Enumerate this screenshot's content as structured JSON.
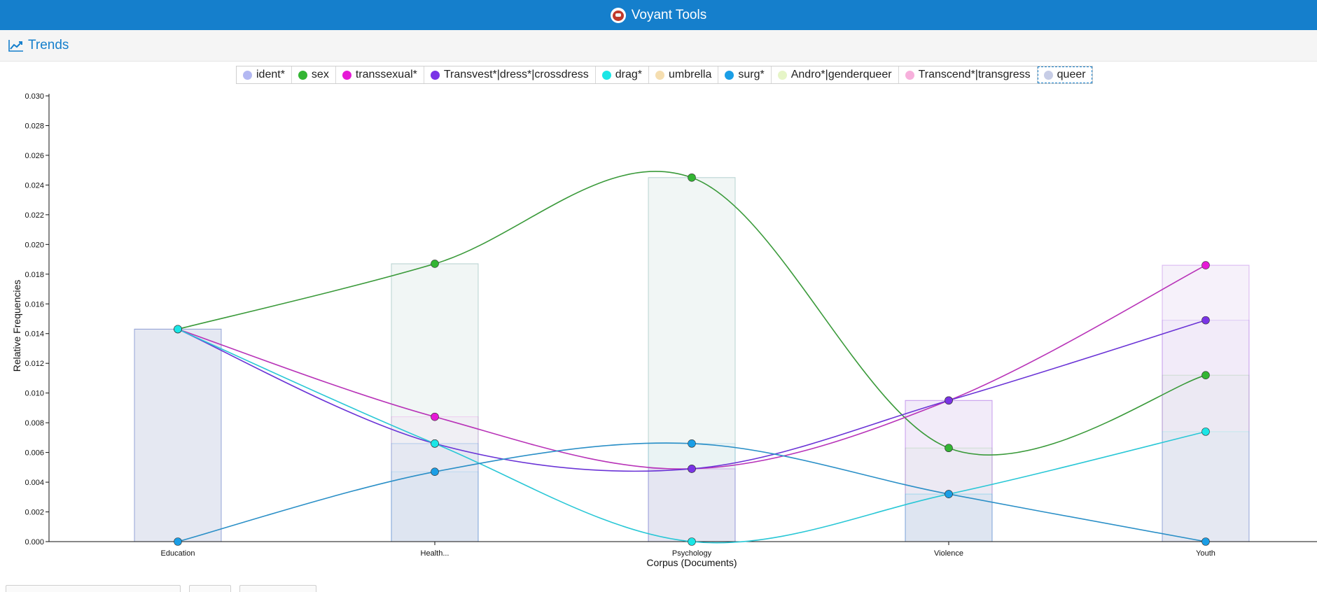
{
  "app": {
    "title": "Voyant Tools"
  },
  "panel": {
    "title": "Trends",
    "icon": "line-chart-icon"
  },
  "legend": [
    {
      "label": "ident*",
      "color": "#b3b8f2"
    },
    {
      "label": "sex",
      "color": "#33b533"
    },
    {
      "label": "transsexual*",
      "color": "#e619d6"
    },
    {
      "label": "Transvest*|dress*|crossdress",
      "color": "#7a33e6"
    },
    {
      "label": "drag*",
      "color": "#1ae6e6"
    },
    {
      "label": "umbrella",
      "color": "#f5deb0"
    },
    {
      "label": "surg*",
      "color": "#1a9ee6"
    },
    {
      "label": "Andro*|genderqueer",
      "color": "#e6f5c7"
    },
    {
      "label": "Transcend*|transgress",
      "color": "#f7b0dc"
    },
    {
      "label": "queer",
      "color": "#c7cde6"
    }
  ],
  "chart_data": {
    "type": "line",
    "categories": [
      "Education",
      "Health...",
      "Psychology",
      "Violence",
      "Youth"
    ],
    "xlabel": "Corpus (Documents)",
    "ylabel": "Relative Frequencies",
    "ylim": [
      0,
      0.03
    ],
    "yticks": [
      "0.000",
      "0.002",
      "0.004",
      "0.006",
      "0.008",
      "0.010",
      "0.012",
      "0.014",
      "0.016",
      "0.018",
      "0.020",
      "0.022",
      "0.024",
      "0.026",
      "0.028",
      "0.030"
    ],
    "series": [
      {
        "name": "sex",
        "color": "#33b533",
        "line": "#3a9a3a",
        "values": [
          0.0143,
          0.0187,
          0.0245,
          0.0063,
          0.0112
        ]
      },
      {
        "name": "transsexual*",
        "color": "#e619d6",
        "line": "#b833b8",
        "values": [
          0.0143,
          0.0084,
          0.0049,
          0.0095,
          0.0186
        ]
      },
      {
        "name": "Transvest*|dress*|crossdress",
        "color": "#7a33e6",
        "line": "#6a33d6",
        "values": [
          0.0143,
          0.0066,
          0.0049,
          0.0095,
          0.0149
        ]
      },
      {
        "name": "drag*",
        "color": "#1ae6e6",
        "line": "#29c7d6",
        "values": [
          0.0143,
          0.0066,
          0.0,
          0.0032,
          0.0074
        ]
      },
      {
        "name": "surg*",
        "color": "#1a9ee6",
        "line": "#2a8fc7",
        "values": [
          0.0,
          0.0047,
          0.0066,
          0.0032,
          0.0
        ]
      }
    ],
    "bar_tops": [
      0.0143,
      0.0187,
      0.0245,
      0.0095,
      0.0186
    ],
    "grid": false
  }
}
